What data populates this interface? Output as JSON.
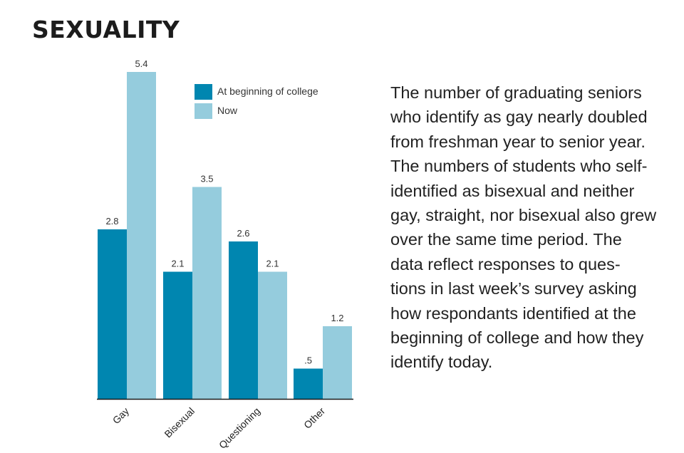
{
  "header": {
    "title": "SEXUALITY"
  },
  "description": {
    "lines": [
      "The number of graduating seniors",
      "who identify as gay nearly doubled",
      "from freshman year to senior year.",
      "The numbers of students who self-",
      "identified as bisexual and neither",
      "gay, straight, nor bisexual also grew",
      "over the same time period. The",
      "data reflect responses to ques-",
      "tions in last week’s survey asking",
      "how respondants identified at the",
      "beginning of college and how they",
      "identify today."
    ]
  },
  "chart_data": {
    "type": "bar",
    "title": "SEXUALITY",
    "xlabel": "",
    "ylabel": "",
    "ylim": [
      0,
      5.4
    ],
    "grid": false,
    "legend_position": "top-right",
    "categories": [
      "Gay",
      "Bisexual",
      "Questioning",
      "Other"
    ],
    "series": [
      {
        "name": "At beginning of college",
        "color": "#0086B0",
        "values": [
          2.8,
          2.1,
          2.6,
          0.5
        ],
        "labels": [
          "2.8",
          "2.1",
          "2.6",
          ".5"
        ]
      },
      {
        "name": "Now",
        "color": "#95CCDD",
        "values": [
          5.4,
          3.5,
          2.1,
          1.2
        ],
        "labels": [
          "5.4",
          "3.5",
          "2.1",
          "1.2"
        ]
      }
    ]
  }
}
